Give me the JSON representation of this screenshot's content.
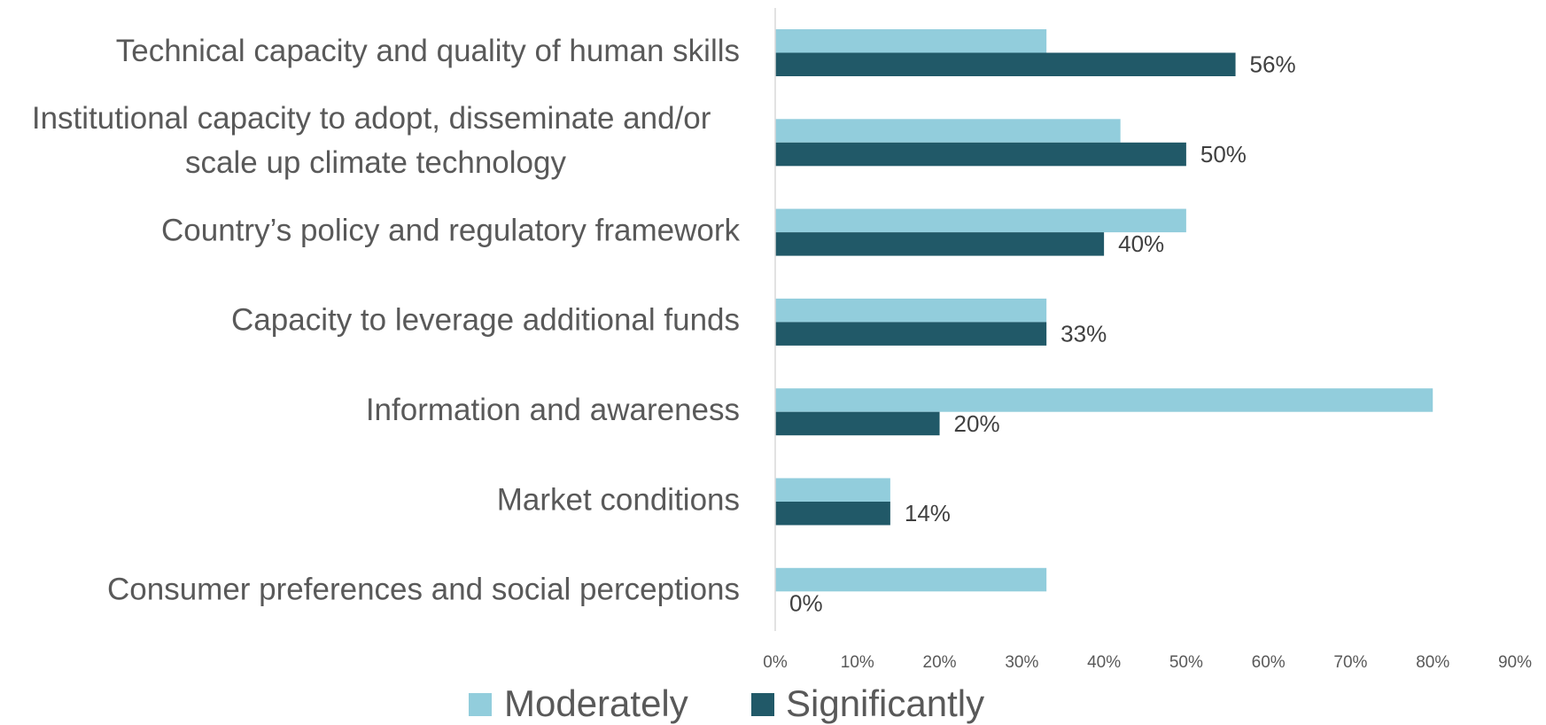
{
  "chart_data": {
    "type": "bar",
    "orientation": "horizontal",
    "categories": [
      "Technical capacity and quality of human skills",
      "Institutional capacity to adopt, disseminate and/or scale up climate technology",
      "Country’s policy and regulatory framework",
      "Capacity to leverage additional funds",
      "Information and awareness",
      "Market conditions",
      "Consumer preferences and social perceptions"
    ],
    "series": [
      {
        "name": "Moderately",
        "color": "#92cddc",
        "values": [
          33,
          42,
          50,
          33,
          80,
          14,
          33
        ]
      },
      {
        "name": "Significantly",
        "color": "#215968",
        "values": [
          56,
          50,
          40,
          33,
          20,
          14,
          0
        ],
        "value_labels": [
          "56%",
          "50%",
          "40%",
          "33%",
          "20%",
          "14%",
          "0%"
        ]
      }
    ],
    "xlim": [
      0,
      90
    ],
    "xticks": [
      {
        "value": 0,
        "label": "0%"
      },
      {
        "value": 10,
        "label": "10%"
      },
      {
        "value": 20,
        "label": "20%"
      },
      {
        "value": 30,
        "label": "30%"
      },
      {
        "value": 40,
        "label": "40%"
      },
      {
        "value": 50,
        "label": "50%"
      },
      {
        "value": 60,
        "label": "60%"
      },
      {
        "value": 70,
        "label": "70%"
      },
      {
        "value": 80,
        "label": "80%"
      },
      {
        "value": 90,
        "label": "90%"
      }
    ],
    "grid": false,
    "legend": "bottom"
  }
}
